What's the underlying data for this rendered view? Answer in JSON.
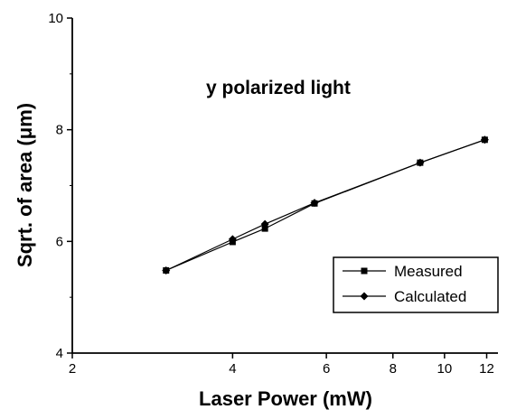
{
  "chart_data": {
    "type": "line",
    "xlabel": "Laser Power (mW)",
    "ylabel": "Sqrt. of area (μm)",
    "annotation": "y polarized light",
    "x_scale": "log",
    "xlim": [
      2,
      12.6
    ],
    "ylim": [
      4,
      10
    ],
    "x_ticks": [
      2,
      4,
      6,
      8,
      10,
      12
    ],
    "y_ticks": [
      4,
      6,
      8,
      10
    ],
    "grid": false,
    "legend_position": "bottom-right",
    "series": [
      {
        "name": "Measured",
        "marker": "square",
        "color": "#000000",
        "x": [
          3.0,
          4.0,
          4.6,
          5.7,
          9.0,
          11.9
        ],
        "y": [
          5.48,
          5.99,
          6.23,
          6.68,
          7.41,
          7.82
        ]
      },
      {
        "name": "Calculated",
        "marker": "diamond",
        "color": "#000000",
        "x": [
          3.0,
          4.0,
          4.6,
          5.7,
          9.0,
          11.9
        ],
        "y": [
          5.48,
          6.04,
          6.31,
          6.69,
          7.41,
          7.82
        ]
      }
    ]
  }
}
